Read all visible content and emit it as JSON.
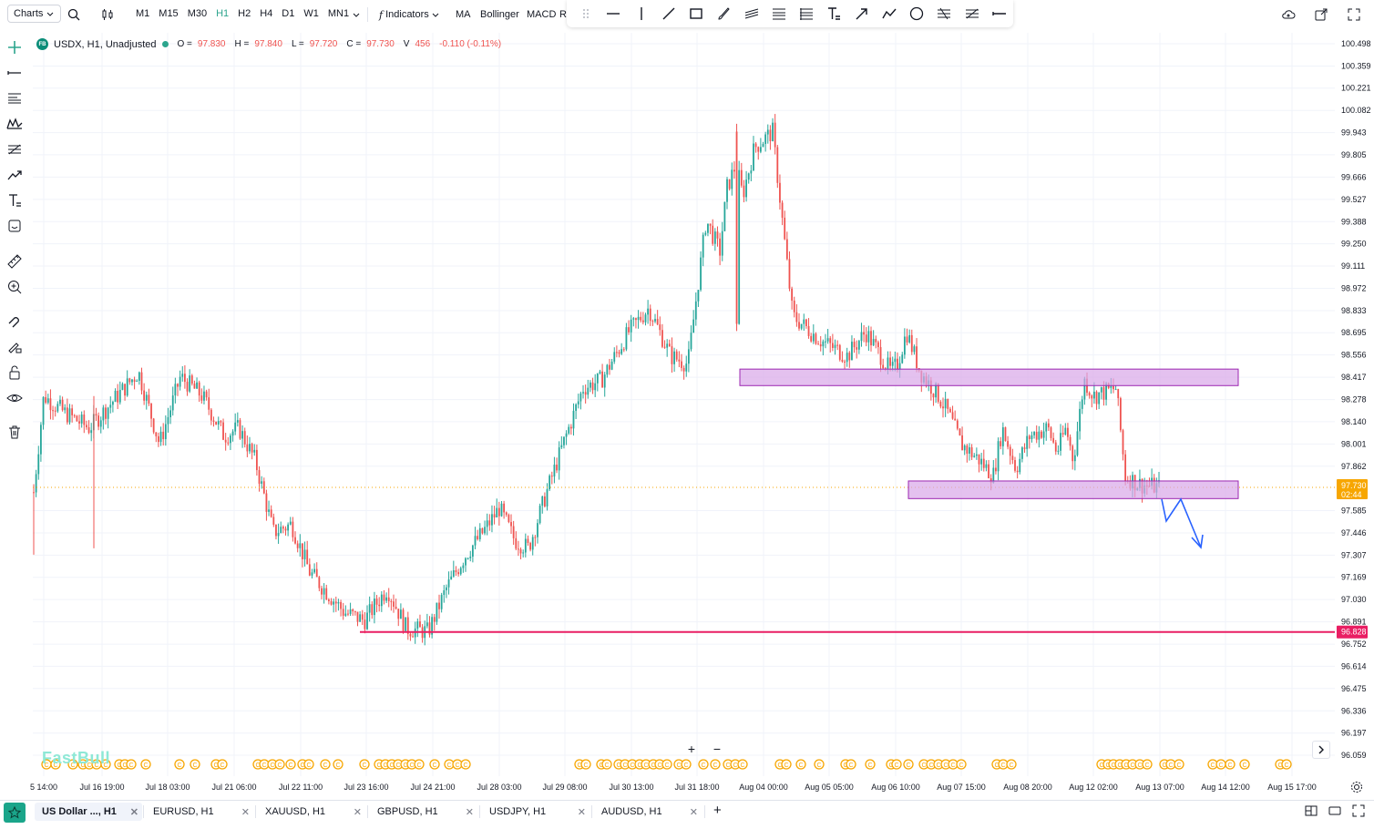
{
  "toolbar": {
    "charts_label": "Charts",
    "timeframes": [
      "M1",
      "M15",
      "M30",
      "H1",
      "H2",
      "H4",
      "D1",
      "W1",
      "MN1"
    ],
    "active_timeframe": "H1",
    "indicators_label": "Indicators",
    "ma_label": "MA",
    "bollinger_label": "Bollinger",
    "macd_label": "MACD",
    "rsi_label": "R"
  },
  "legend": {
    "logo": "FB",
    "symbol": "USDX, H1, Unadjusted",
    "o_key": "O =",
    "o_val": "97.830",
    "h_key": "H =",
    "h_val": "97.840",
    "l_key": "L =",
    "l_val": "97.720",
    "c_key": "C =",
    "c_val": "97.730",
    "v_key": "V",
    "v_val": "456",
    "change": "-0.110 (-0.11%)"
  },
  "price_axis": [
    "100.498",
    "100.359",
    "100.221",
    "100.082",
    "99.943",
    "99.805",
    "99.666",
    "99.527",
    "99.388",
    "99.250",
    "99.111",
    "98.972",
    "98.833",
    "98.695",
    "98.556",
    "98.417",
    "98.278",
    "98.140",
    "98.001",
    "97.862",
    "97.585",
    "97.446",
    "97.307",
    "97.169",
    "97.030",
    "96.891",
    "96.752",
    "96.614",
    "96.475",
    "96.336",
    "96.197",
    "96.059"
  ],
  "current_price": {
    "label": "97.730",
    "countdown": "02:44",
    "color": "#f7a600"
  },
  "support_line": {
    "label": "96.828",
    "color": "#e91e63"
  },
  "time_axis": [
    "5 14:00",
    "Jul 16 19:00",
    "Jul 18 03:00",
    "Jul 21 06:00",
    "Jul 22 11:00",
    "Jul 23 16:00",
    "Jul 24 21:00",
    "Jul 28 03:00",
    "Jul 29 08:00",
    "Jul 30 13:00",
    "Jul 31 18:00",
    "Aug 04 00:00",
    "Aug 05 05:00",
    "Aug 06 10:00",
    "Aug 07 15:00",
    "Aug 08 20:00",
    "Aug 12 02:00",
    "Aug 13 07:00",
    "Aug 14 12:00",
    "Aug 15 17:00"
  ],
  "watermark": "FastBull",
  "colors": {
    "up": "#26a69a",
    "down": "#ef5350",
    "zone_fill": "#d8a6e8",
    "zone_stroke": "#9c27b0",
    "arrow": "#2962ff",
    "event": "#f7a600"
  },
  "tabs": [
    {
      "label": "US Dollar ..., H1",
      "active": true
    },
    {
      "label": "EURUSD, H1",
      "active": false
    },
    {
      "label": "XAUUSD, H1",
      "active": false
    },
    {
      "label": "GBPUSD, H1",
      "active": false
    },
    {
      "label": "USDJPY, H1",
      "active": false
    },
    {
      "label": "AUDUSD, H1",
      "active": false
    }
  ],
  "chart_data": {
    "type": "candlestick",
    "title": "USDX, H1, Unadjusted",
    "ylim": [
      96.0,
      100.55
    ],
    "x_labels": [
      "5 14:00",
      "Jul 16 19:00",
      "Jul 18 03:00",
      "Jul 21 06:00",
      "Jul 22 11:00",
      "Jul 23 16:00",
      "Jul 24 21:00",
      "Jul 28 03:00",
      "Jul 29 08:00",
      "Jul 30 13:00",
      "Jul 31 18:00",
      "Aug 04 00:00",
      "Aug 05 05:00",
      "Aug 06 10:00",
      "Aug 07 15:00",
      "Aug 08 20:00",
      "Aug 12 02:00",
      "Aug 13 07:00",
      "Aug 14 12:00",
      "Aug 15 17:00"
    ],
    "close_path": [
      97.7,
      98.3,
      98.2,
      98.1,
      98.45,
      98.0,
      98.42,
      98.3,
      98.05,
      98.1,
      97.9,
      97.45,
      97.5,
      97.2,
      96.95,
      96.9,
      97.1,
      96.85,
      96.83,
      97.1,
      97.3,
      97.45,
      97.6,
      97.4,
      97.35,
      97.7,
      98.0,
      98.35,
      98.4,
      98.7,
      98.85,
      98.55,
      98.5,
      99.4,
      99.2,
      99.6,
      99.75,
      99.55,
      99.85,
      99.95,
      98.8,
      98.65,
      98.55,
      98.7,
      98.45,
      98.5,
      98.7,
      98.45,
      98.3,
      98.2,
      98.0,
      97.9,
      97.8,
      98.1,
      97.85,
      98.05,
      98.1,
      97.95,
      98.1,
      97.9,
      98.4,
      98.3,
      98.35,
      97.8,
      97.75,
      97.73
    ],
    "support_level": 96.828,
    "zones": [
      {
        "from": 98.365,
        "to": 98.468
      },
      {
        "from": 97.66,
        "to": 97.77
      }
    ]
  }
}
